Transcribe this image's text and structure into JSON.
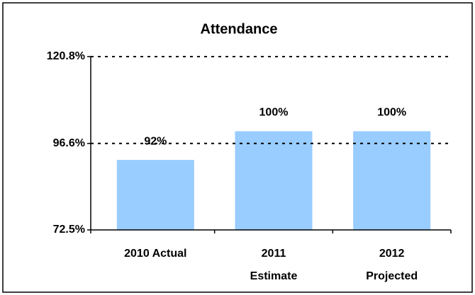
{
  "chart_data": {
    "type": "bar",
    "title": "Attendance",
    "categories": [
      "2010 Actual",
      "2011 Estimate",
      "2012 Projected"
    ],
    "values": [
      92,
      100,
      100
    ],
    "value_labels": [
      "92%",
      "100%",
      "100%"
    ],
    "color": "#99ccff",
    "ylim": [
      72.5,
      120.8
    ],
    "yticks": [
      {
        "value": 72.5,
        "label": "72.5%"
      },
      {
        "value": 96.6,
        "label": "96.6%"
      },
      {
        "value": 120.8,
        "label": "120.8%"
      }
    ],
    "grid": true
  }
}
